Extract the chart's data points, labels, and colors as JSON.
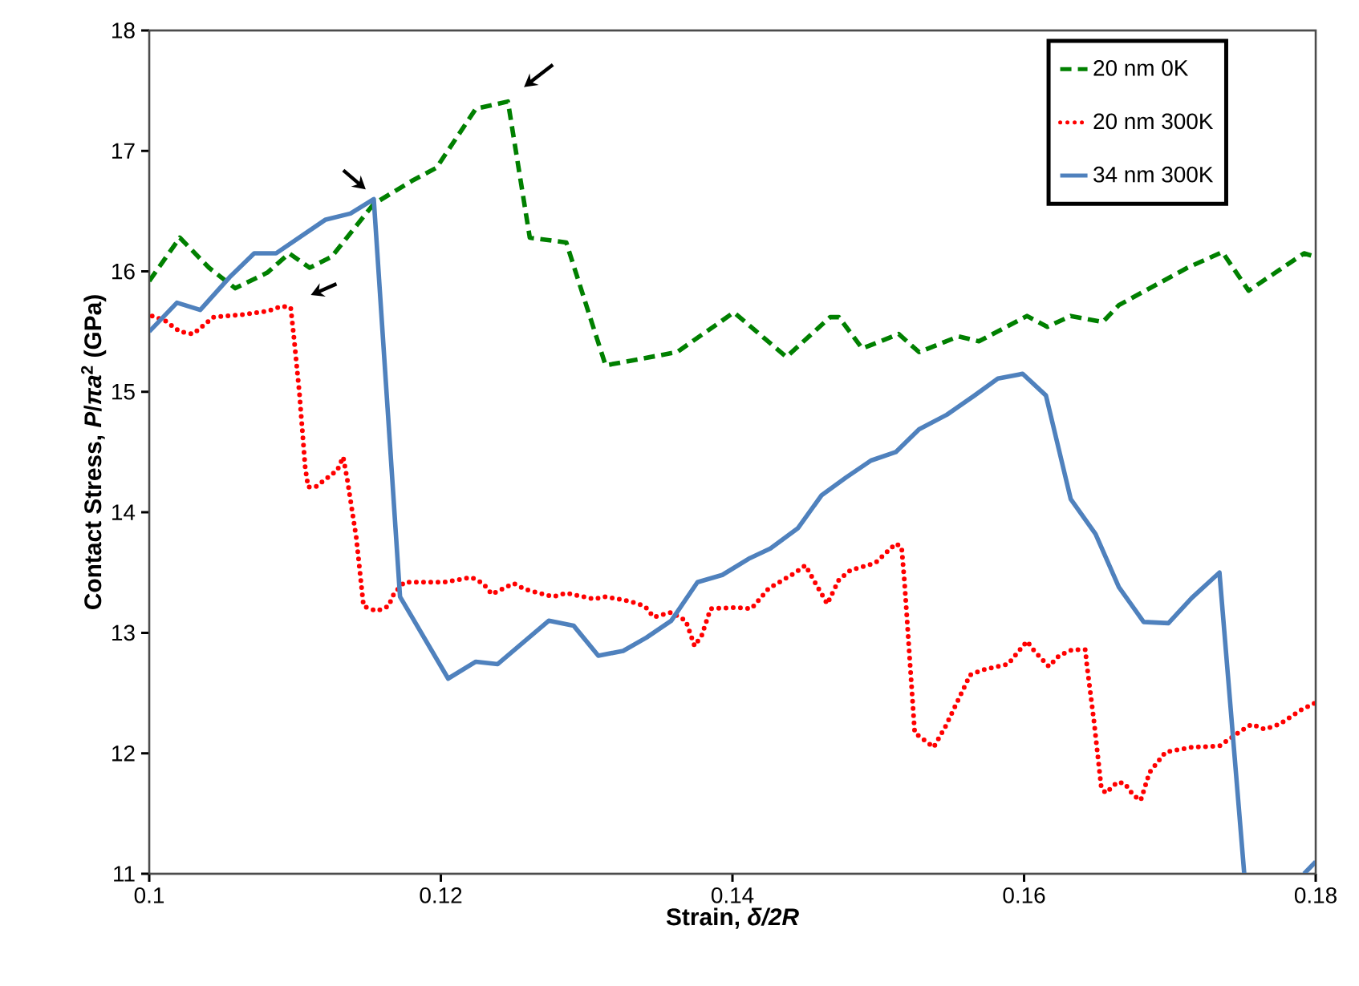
{
  "chart_data": {
    "type": "line",
    "xlabel": "Strain, *δ/2R*",
    "ylabel": "Contact Stress, *P*/*πa*$^{2}$ (GPa)",
    "xlim": [
      0.1,
      0.18
    ],
    "ylim": [
      11,
      18
    ],
    "xticks": [
      0.1,
      0.12,
      0.14,
      0.16,
      0.18
    ],
    "yticks": [
      11,
      12,
      13,
      14,
      15,
      16,
      17,
      18
    ],
    "grid": false,
    "legend": "top right",
    "marker": "none",
    "series": [
      {
        "name": "20 nm 0K",
        "color": "#008000",
        "line_style": "dashed",
        "x": [
          0.1,
          0.1021,
          0.1041,
          0.1059,
          0.1081,
          0.1096,
          0.111,
          0.1125,
          0.1154,
          0.118,
          0.1197,
          0.1224,
          0.1246,
          0.1261,
          0.1286,
          0.1305,
          0.1313,
          0.1362,
          0.1401,
          0.1437,
          0.1467,
          0.1473,
          0.1489,
          0.1514,
          0.1528,
          0.1555,
          0.1569,
          0.1602,
          0.1616,
          0.1632,
          0.1654,
          0.1665,
          0.1712,
          0.1736,
          0.1754,
          0.1792,
          0.18
        ],
        "values": [
          15.92,
          16.28,
          16.03,
          15.86,
          15.99,
          16.15,
          16.03,
          16.12,
          16.56,
          16.75,
          16.86,
          17.35,
          17.41,
          16.28,
          16.24,
          15.52,
          15.22,
          15.33,
          15.66,
          15.29,
          15.62,
          15.62,
          15.36,
          15.48,
          15.33,
          15.46,
          15.42,
          15.63,
          15.54,
          15.63,
          15.58,
          15.72,
          16.03,
          16.16,
          15.84,
          16.15,
          16.12
        ]
      },
      {
        "name": "20 nm 300K",
        "color": "#ff0000",
        "line_style": "dotted",
        "x": [
          0.1002,
          0.1011,
          0.1021,
          0.103,
          0.1044,
          0.1063,
          0.1081,
          0.1091,
          0.1097,
          0.1099,
          0.1103,
          0.1107,
          0.1109,
          0.1114,
          0.1129,
          0.1133,
          0.1136,
          0.1142,
          0.1147,
          0.1156,
          0.1164,
          0.1168,
          0.1175,
          0.1202,
          0.1221,
          0.1229,
          0.1235,
          0.125,
          0.1258,
          0.1277,
          0.1286,
          0.1305,
          0.1313,
          0.133,
          0.134,
          0.1346,
          0.1358,
          0.1368,
          0.1374,
          0.1379,
          0.1385,
          0.1403,
          0.1413,
          0.1425,
          0.1442,
          0.145,
          0.1457,
          0.1465,
          0.1473,
          0.1481,
          0.1498,
          0.1512,
          0.1516,
          0.1518,
          0.1525,
          0.1538,
          0.1546,
          0.1563,
          0.1571,
          0.1589,
          0.1602,
          0.1607,
          0.1617,
          0.1624,
          0.1633,
          0.1642,
          0.1643,
          0.1648,
          0.1653,
          0.1656,
          0.1664,
          0.1669,
          0.1675,
          0.168,
          0.1686,
          0.1697,
          0.1715,
          0.1734,
          0.1748,
          0.1756,
          0.1765,
          0.1775,
          0.179,
          0.18
        ],
        "values": [
          15.63,
          15.59,
          15.5,
          15.48,
          15.62,
          15.64,
          15.67,
          15.71,
          15.7,
          15.48,
          14.99,
          14.37,
          14.21,
          14.21,
          14.35,
          14.46,
          14.26,
          13.79,
          13.22,
          13.18,
          13.22,
          13.33,
          13.42,
          13.42,
          13.46,
          13.41,
          13.32,
          13.41,
          13.36,
          13.3,
          13.33,
          13.28,
          13.3,
          13.26,
          13.22,
          13.13,
          13.17,
          13.1,
          12.89,
          12.98,
          13.2,
          13.21,
          13.2,
          13.37,
          13.49,
          13.56,
          13.41,
          13.24,
          13.44,
          13.52,
          13.58,
          13.74,
          13.71,
          13.42,
          12.17,
          12.05,
          12.22,
          12.65,
          12.69,
          12.74,
          12.93,
          12.85,
          12.72,
          12.81,
          12.86,
          12.86,
          12.74,
          12.26,
          11.71,
          11.67,
          11.76,
          11.75,
          11.65,
          11.61,
          11.84,
          12.01,
          12.05,
          12.06,
          12.18,
          12.24,
          12.2,
          12.24,
          12.36,
          12.42
        ]
      },
      {
        "name": "34 nm 300K",
        "color": "#4f81bd",
        "line_style": "solid",
        "x": [
          0.1,
          0.1019,
          0.1035,
          0.1055,
          0.1072,
          0.1087,
          0.1121,
          0.1138,
          0.1154,
          0.1172,
          0.1205,
          0.1224,
          0.1239,
          0.1274,
          0.1291,
          0.1308,
          0.1325,
          0.1341,
          0.1358,
          0.1376,
          0.1393,
          0.1412,
          0.1426,
          0.1445,
          0.1461,
          0.1478,
          0.1495,
          0.1512,
          0.1528,
          0.1547,
          0.1566,
          0.1582,
          0.1599,
          0.1615,
          0.1632,
          0.1649,
          0.1665,
          0.1682,
          0.1699,
          0.1715,
          0.1734,
          0.1751,
          0.177,
          0.1792,
          0.18
        ],
        "values": [
          15.5,
          15.74,
          15.68,
          15.95,
          16.15,
          16.15,
          16.43,
          16.48,
          16.6,
          13.3,
          12.62,
          12.76,
          12.74,
          13.1,
          13.06,
          12.81,
          12.85,
          12.96,
          13.1,
          13.42,
          13.48,
          13.62,
          13.7,
          13.87,
          14.14,
          14.29,
          14.43,
          14.5,
          14.69,
          14.81,
          14.97,
          15.11,
          15.15,
          14.97,
          14.11,
          13.82,
          13.38,
          13.09,
          13.08,
          13.29,
          13.5,
          11,
          null,
          11,
          11.1
        ]
      }
    ]
  }
}
